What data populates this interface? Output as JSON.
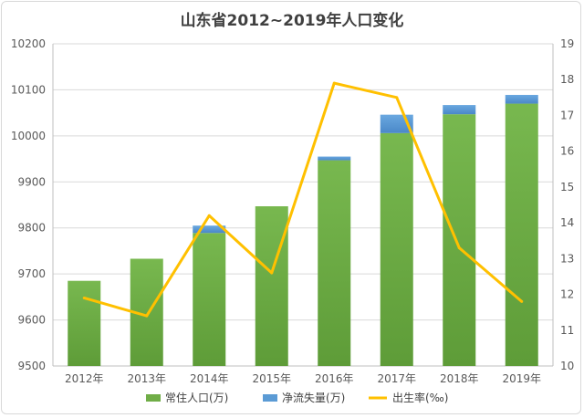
{
  "chart_data": {
    "type": "bar",
    "title": "山东省2012~2019年人口变化",
    "categories": [
      "2012年",
      "2013年",
      "2014年",
      "2015年",
      "2016年",
      "2017年",
      "2018年",
      "2019年"
    ],
    "series": [
      {
        "name": "常住人口(万)",
        "kind": "bar",
        "axis": "left",
        "values": [
          9685,
          9733,
          9789,
          9847,
          9947,
          10006,
          10047,
          10070
        ]
      },
      {
        "name": "净流失量(万)",
        "kind": "bar-stacked",
        "axis": "left",
        "values": [
          0,
          0,
          16,
          0,
          8,
          40,
          20,
          19
        ]
      },
      {
        "name": "出生率(‰)",
        "kind": "line",
        "axis": "right",
        "values": [
          11.9,
          11.4,
          14.2,
          12.6,
          17.9,
          17.5,
          13.3,
          11.8
        ]
      }
    ],
    "ylim": [
      9500,
      10200
    ],
    "yticks": [
      9500,
      9600,
      9700,
      9800,
      9900,
      10000,
      10100,
      10200
    ],
    "y2lim": [
      10,
      19
    ],
    "y2ticks": [
      10,
      11,
      12,
      13,
      14,
      15,
      16,
      17,
      18,
      19
    ],
    "grid": true,
    "legend_position": "bottom"
  },
  "colors": {
    "population": "#70ad47",
    "population_dark": "#5a9a34",
    "outflow": "#5b9bd5",
    "birth_rate": "#ffc000",
    "grid": "#d9d9d9",
    "axis": "#bfbfbf"
  }
}
